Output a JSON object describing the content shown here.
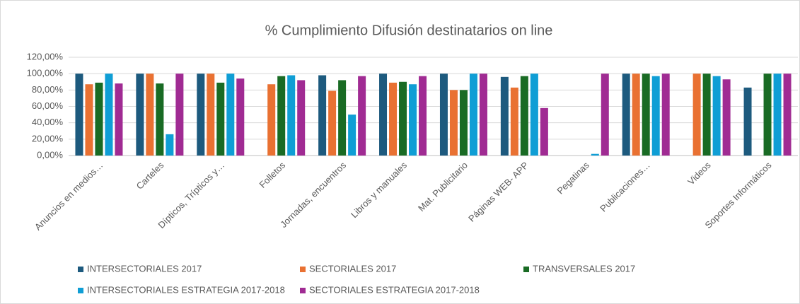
{
  "chart_data": {
    "type": "bar",
    "title": "% Cumplimiento Difusión destinatarios on line",
    "categories": [
      "Anuncios en medios…",
      "Carteles",
      "Dípticos, Trípticos y…",
      "Folletos",
      "Jornadas, encuentros",
      "Libros y manuales",
      "Mat. Publicitario",
      "Páginas WEB- APP",
      "Pegatinas",
      "Publicaciones…",
      "Videos",
      "Soportes Informáticos"
    ],
    "series": [
      {
        "name": "INTERSECTORIALES 2017",
        "color": "#1d5a7e",
        "values": [
          100,
          100,
          100,
          null,
          98,
          100,
          100,
          96,
          null,
          100,
          null,
          83
        ]
      },
      {
        "name": "SECTORIALES 2017",
        "color": "#e97132",
        "values": [
          87,
          100,
          100,
          87,
          79,
          89,
          80,
          83,
          null,
          100,
          100,
          null
        ]
      },
      {
        "name": "TRANSVERSALES 2017",
        "color": "#196b24",
        "values": [
          89,
          88,
          89,
          97,
          92,
          90,
          80,
          97,
          null,
          100,
          100,
          100
        ]
      },
      {
        "name": "INTERSECTORIALES ESTRATEGIA 2017-2018",
        "color": "#0f9ed5",
        "values": [
          100,
          26,
          100,
          98,
          50,
          87,
          100,
          100,
          2,
          97,
          97,
          100
        ]
      },
      {
        "name": "SECTORIALES ESTRATEGIA 2017-2018",
        "color": "#a02b93",
        "values": [
          88,
          100,
          94,
          92,
          97,
          97,
          100,
          58,
          100,
          100,
          93,
          100
        ]
      }
    ],
    "ylim": [
      0,
      120
    ],
    "yticks": [
      {
        "value": 0,
        "label": "0,00%"
      },
      {
        "value": 20,
        "label": "20,00%"
      },
      {
        "value": 40,
        "label": "40,00%"
      },
      {
        "value": 60,
        "label": "60,00%"
      },
      {
        "value": 80,
        "label": "80,00%"
      },
      {
        "value": 100,
        "label": "100,00%"
      },
      {
        "value": 120,
        "label": "120,00%"
      }
    ],
    "grid": true
  }
}
